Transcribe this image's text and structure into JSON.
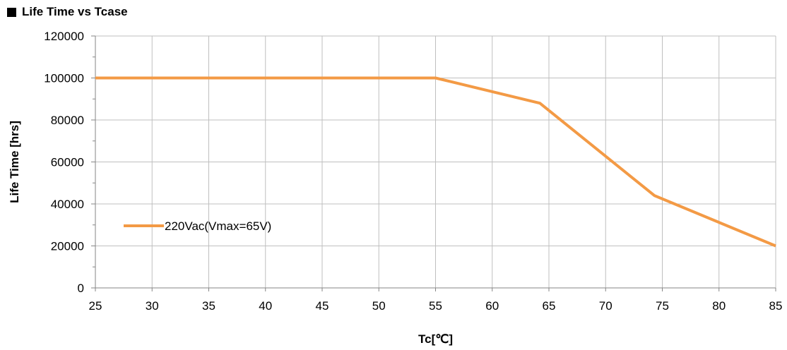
{
  "chart_data": {
    "type": "line",
    "title": "Life Time vs Tcase",
    "xlabel": "Tc[℃]",
    "ylabel": "Life Time [hrs]",
    "xlim": [
      25,
      85
    ],
    "ylim": [
      0,
      120000
    ],
    "x_ticks": [
      25,
      30,
      35,
      40,
      45,
      50,
      55,
      60,
      65,
      70,
      75,
      80,
      85
    ],
    "y_ticks": [
      0,
      20000,
      40000,
      60000,
      80000,
      100000,
      120000
    ],
    "grid": true,
    "legend_position": "left-middle",
    "series": [
      {
        "name": "220Vac(Vmax=65V)",
        "color": "#F39A45",
        "x": [
          25,
          55,
          64.2,
          74.3,
          85
        ],
        "y": [
          100000,
          100000,
          88000,
          44000,
          20000
        ]
      }
    ]
  }
}
